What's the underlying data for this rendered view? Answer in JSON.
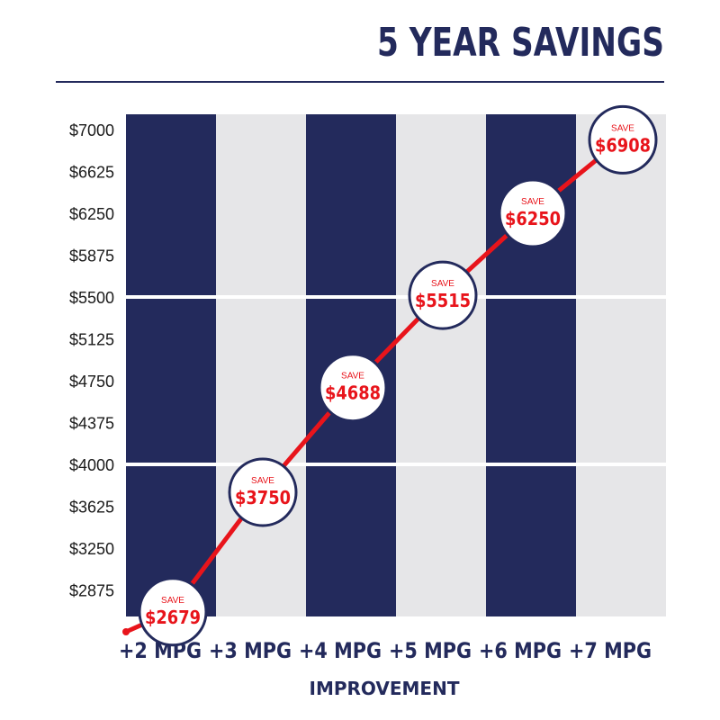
{
  "title": "5 YEAR SAVINGS",
  "colors": {
    "navy": "#232a5c",
    "light_gray": "#e6e6e8",
    "accent_red": "#e8141b",
    "white": "#ffffff"
  },
  "chart_data": {
    "type": "line",
    "title": "5 YEAR SAVINGS",
    "xlabel": "IMPROVEMENT",
    "ylabel": "",
    "categories": [
      "+2 MPG",
      "+3 MPG",
      "+4 MPG",
      "+5 MPG",
      "+6 MPG",
      "+7 MPG"
    ],
    "y_ticks": [
      7000,
      6625,
      6250,
      5875,
      5500,
      5125,
      4750,
      4375,
      4000,
      3625,
      3250,
      2875
    ],
    "y_tick_labels": [
      "$7000",
      "$6625",
      "$6250",
      "$5875",
      "$5500",
      "$5125",
      "$4750",
      "$4375",
      "$4000",
      "$3625",
      "$3250",
      "$2875"
    ],
    "ylim": [
      2500,
      7000
    ],
    "grid": "horizontal lines at $4000 and $5500",
    "background_columns": "alternating navy and light gray bands, one per category",
    "series": [
      {
        "values": [
          2679,
          3750,
          4688,
          5515,
          6250,
          6908
        ],
        "value_labels": [
          "$2679",
          "$3750",
          "$4688",
          "$5515",
          "$6250",
          "$6908"
        ],
        "marker_caption": "SAVE"
      }
    ],
    "line_start": {
      "x": "+2 MPG",
      "y": 2500
    }
  }
}
